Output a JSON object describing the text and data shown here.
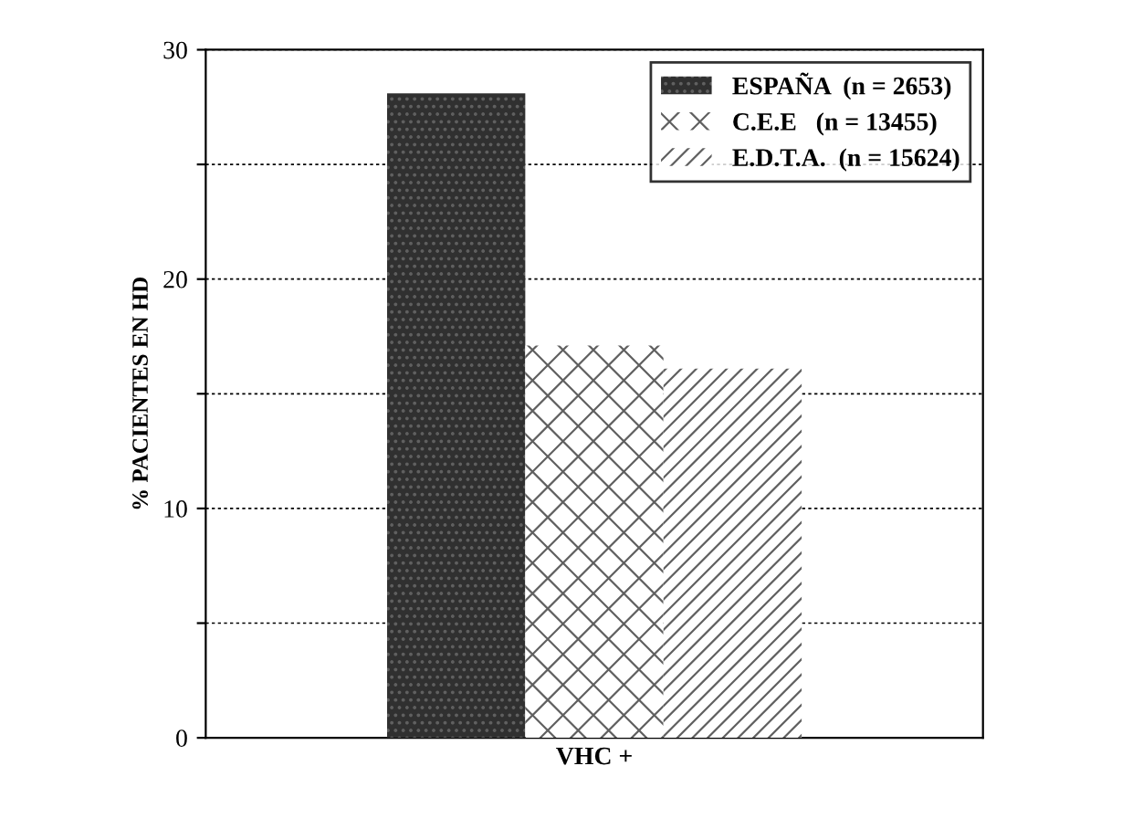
{
  "chart_data": {
    "type": "bar",
    "ylabel": "% PACIENTES EN HD",
    "categories": [
      "VHC +"
    ],
    "series": [
      {
        "name": "ESPAÑA  (n = 2653)",
        "color": "#303030",
        "values": [
          28.1
        ]
      },
      {
        "name": "C.E.E   (n = 13455)",
        "color": "#ffffff",
        "values": [
          17.1
        ]
      },
      {
        "name": "E.D.T.A.  (n = 15624)",
        "color": "#ffffff",
        "values": [
          16.1
        ]
      }
    ],
    "ylim": [
      0,
      30
    ],
    "yticks": [
      0,
      {
        "value": 5,
        "label": null
      },
      10,
      {
        "value": 15,
        "label": null
      },
      20,
      {
        "value": 25,
        "label": null
      },
      30
    ],
    "grid": "y",
    "legend": "top right"
  }
}
